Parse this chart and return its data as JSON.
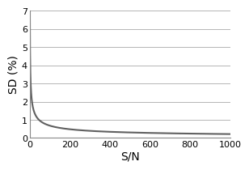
{
  "title": "",
  "xlabel": "S/N",
  "ylabel": "SD (%)",
  "xlim": [
    0,
    1000
  ],
  "ylim": [
    0,
    7
  ],
  "yticks": [
    0,
    1,
    2,
    3,
    4,
    5,
    6,
    7
  ],
  "xticks": [
    0,
    200,
    400,
    600,
    800,
    1000
  ],
  "line_color": "#606060",
  "line_width": 1.5,
  "background_color": "#ffffff",
  "grid_color": "#aaaaaa",
  "scale_factor": 6.8,
  "x_start": 1,
  "x_end": 1000,
  "num_points": 2000
}
